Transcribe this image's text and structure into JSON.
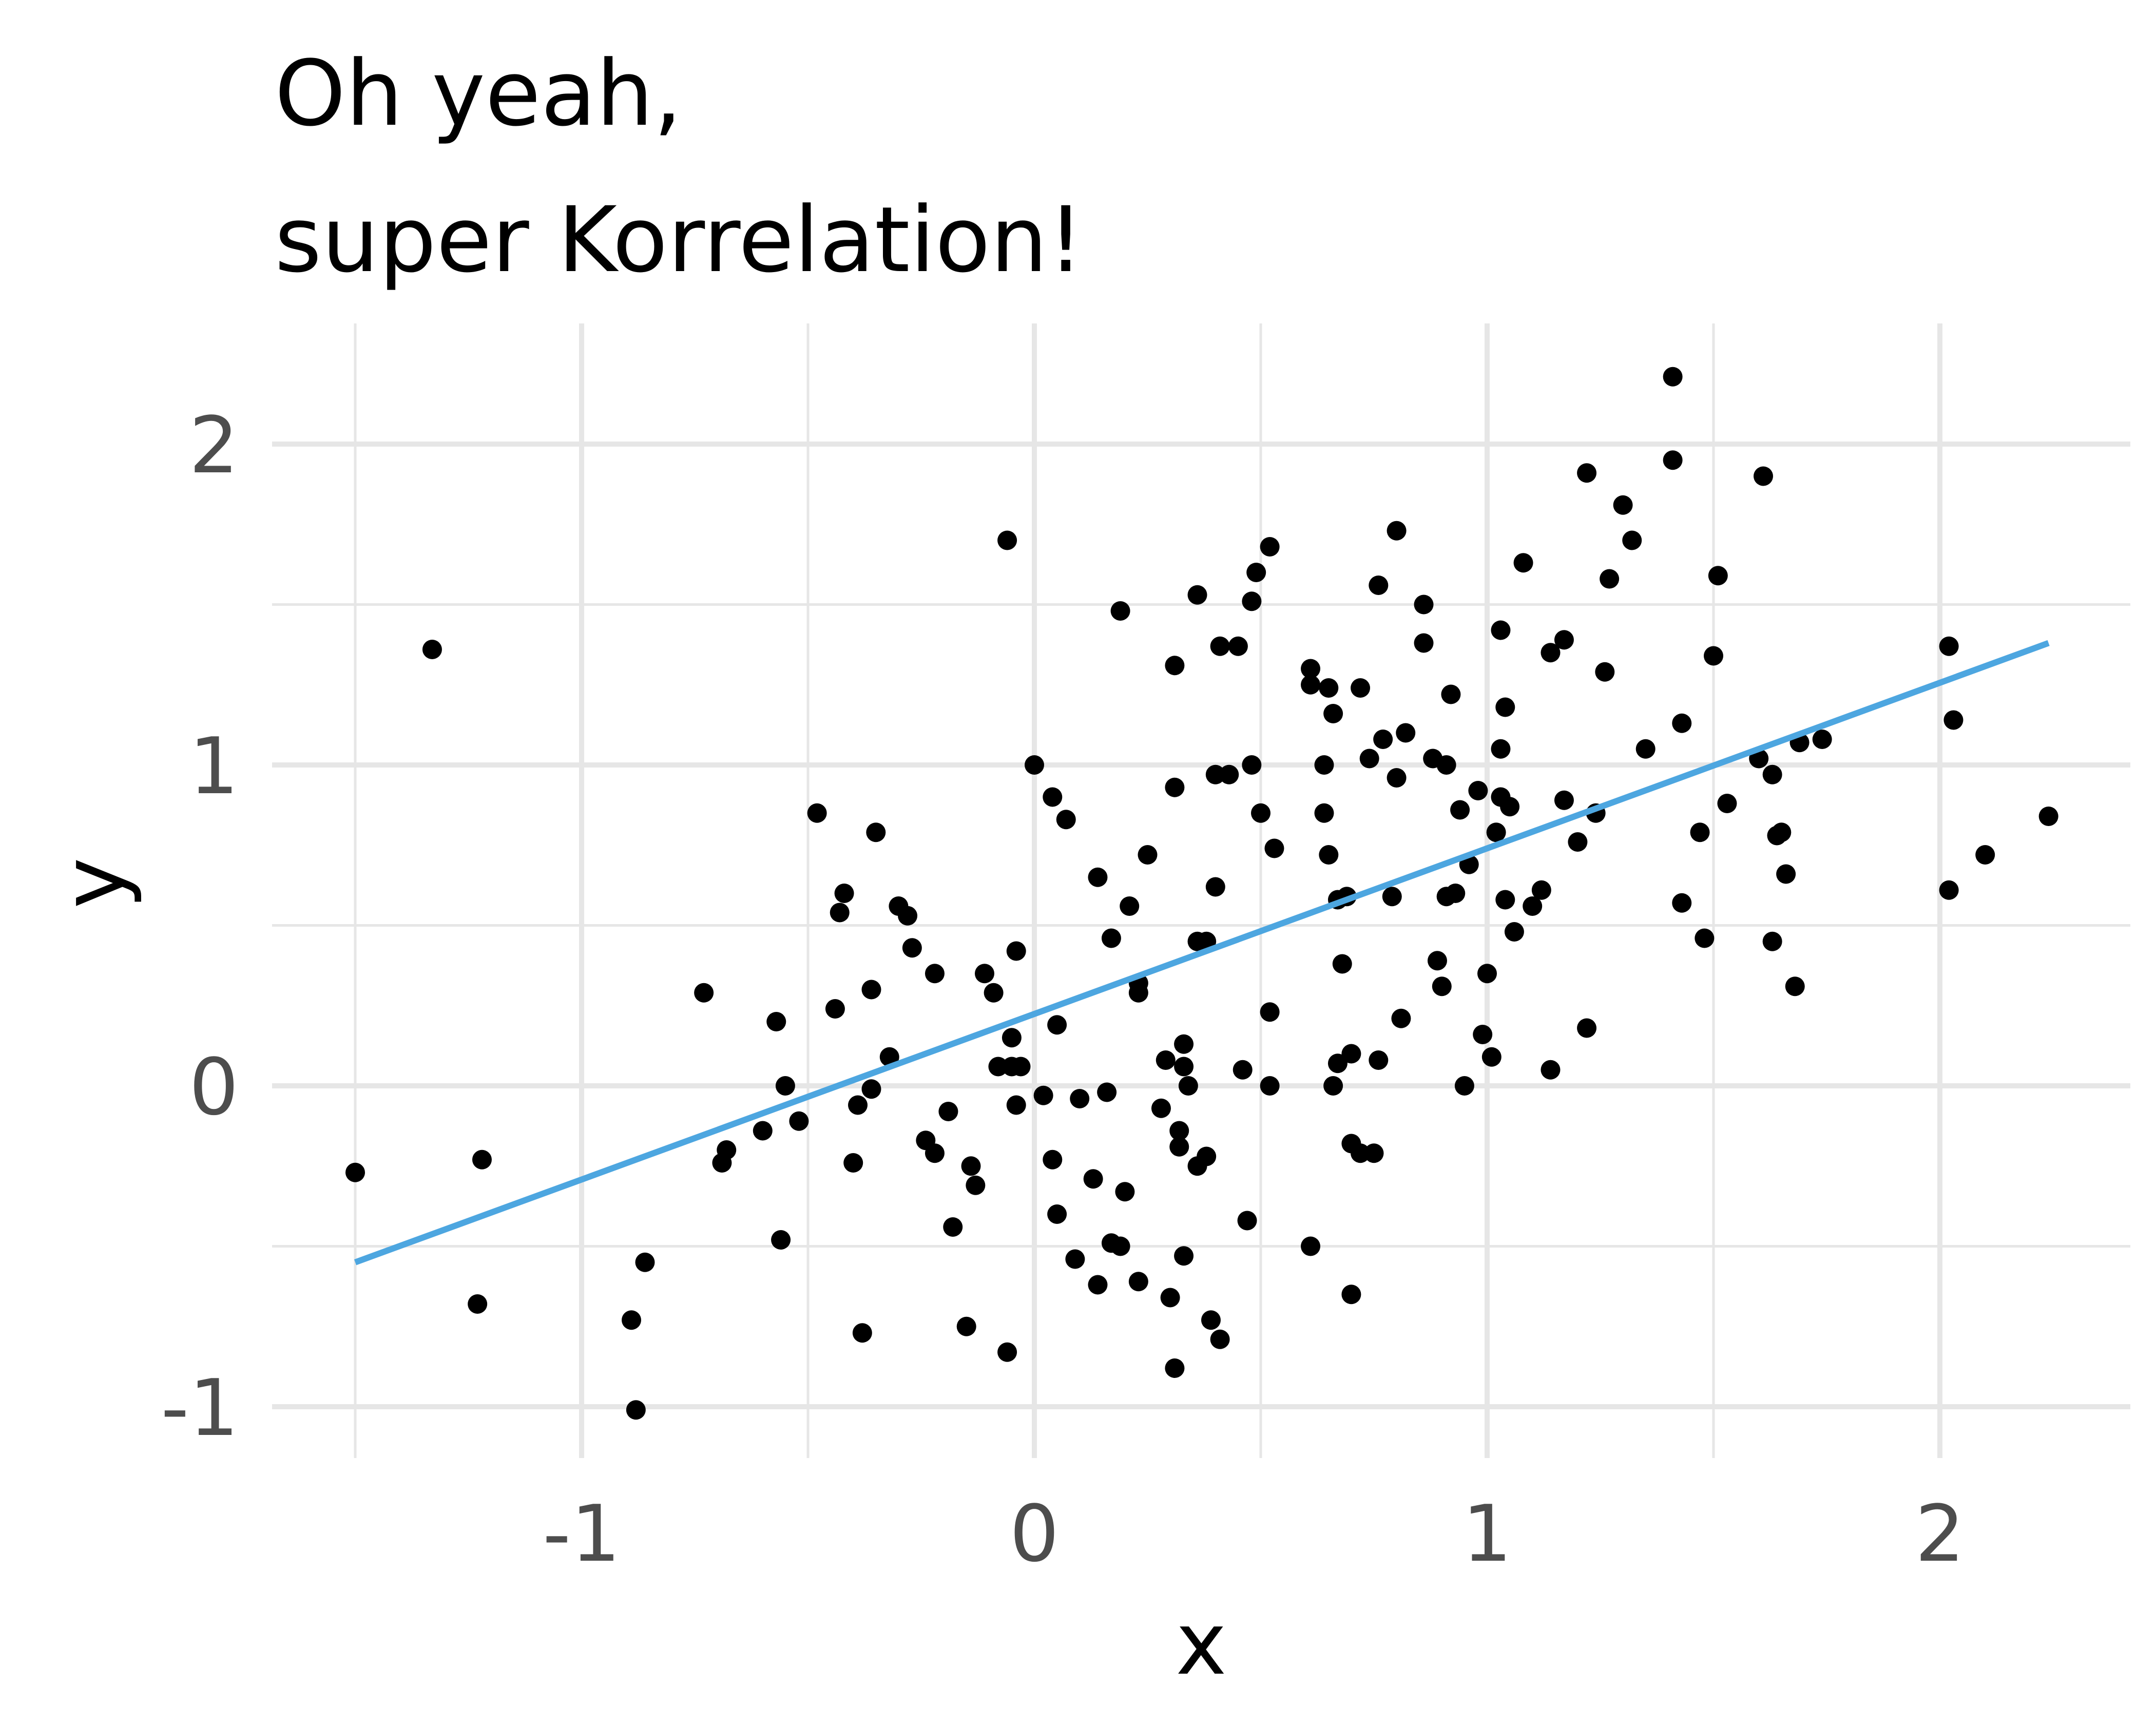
{
  "chart_data": {
    "type": "scatter",
    "title_lines": [
      "Oh yeah,",
      "super Korrelation!"
    ],
    "xlabel": "x",
    "ylabel": "y",
    "xlim": [
      -1.55,
      2.4
    ],
    "ylim": [
      -1.15,
      2.35
    ],
    "x_major_ticks": [
      -1,
      0,
      1,
      2
    ],
    "x_tick_labels": [
      "-1",
      "0",
      "1",
      "2"
    ],
    "x_minor_ticks": [
      -1.5,
      -0.5,
      0.5,
      1.5
    ],
    "y_major_ticks": [
      -1,
      0,
      1,
      2
    ],
    "y_tick_labels": [
      "-1",
      "0",
      "1",
      "2"
    ],
    "y_minor_ticks": [
      -0.5,
      0.5,
      1.5
    ],
    "grid": true,
    "colors": {
      "points": "#000000",
      "fit_line": "#4da6e0",
      "grid": "#e6e6e6"
    },
    "fit_line": {
      "x": [
        -1.5,
        2.24
      ],
      "y": [
        -0.55,
        1.38
      ]
    },
    "points": [
      [
        -1.5,
        -0.27
      ],
      [
        -1.33,
        1.36
      ],
      [
        -1.22,
        -0.23
      ],
      [
        -1.23,
        -0.68
      ],
      [
        -0.89,
        -0.73
      ],
      [
        -0.88,
        -1.01
      ],
      [
        -0.86,
        -0.55
      ],
      [
        -0.73,
        0.29
      ],
      [
        -0.69,
        -0.24
      ],
      [
        -0.68,
        -0.2
      ],
      [
        -0.6,
        -0.14
      ],
      [
        -0.57,
        0.2
      ],
      [
        -0.56,
        -0.48
      ],
      [
        -0.55,
        0.0
      ],
      [
        -0.52,
        -0.11
      ],
      [
        -0.48,
        0.85
      ],
      [
        -0.44,
        0.24
      ],
      [
        -0.43,
        0.54
      ],
      [
        -0.42,
        0.6
      ],
      [
        -0.4,
        -0.24
      ],
      [
        -0.39,
        -0.06
      ],
      [
        -0.38,
        -0.77
      ],
      [
        -0.36,
        -0.01
      ],
      [
        -0.36,
        0.3
      ],
      [
        -0.35,
        0.79
      ],
      [
        -0.32,
        0.09
      ],
      [
        -0.3,
        0.56
      ],
      [
        -0.28,
        0.53
      ],
      [
        -0.27,
        0.43
      ],
      [
        -0.24,
        -0.17
      ],
      [
        -0.22,
        -0.21
      ],
      [
        -0.22,
        0.35
      ],
      [
        -0.19,
        -0.08
      ],
      [
        -0.18,
        -0.44
      ],
      [
        -0.15,
        -0.75
      ],
      [
        -0.14,
        -0.25
      ],
      [
        -0.13,
        -0.31
      ],
      [
        -0.11,
        0.35
      ],
      [
        -0.09,
        0.29
      ],
      [
        -0.08,
        0.06
      ],
      [
        -0.06,
        -0.83
      ],
      [
        -0.06,
        1.7
      ],
      [
        -0.05,
        0.06
      ],
      [
        -0.05,
        0.15
      ],
      [
        -0.04,
        0.42
      ],
      [
        -0.04,
        -0.06
      ],
      [
        -0.03,
        0.06
      ],
      [
        0.0,
        1.0
      ],
      [
        0.02,
        -0.03
      ],
      [
        0.04,
        0.9
      ],
      [
        0.04,
        -0.23
      ],
      [
        0.05,
        -0.4
      ],
      [
        0.05,
        0.19
      ],
      [
        0.07,
        0.83
      ],
      [
        0.09,
        -0.54
      ],
      [
        0.1,
        -0.04
      ],
      [
        0.13,
        -0.29
      ],
      [
        0.14,
        -0.62
      ],
      [
        0.14,
        0.65
      ],
      [
        0.16,
        -0.02
      ],
      [
        0.17,
        0.46
      ],
      [
        0.17,
        -0.49
      ],
      [
        0.19,
        1.48
      ],
      [
        0.19,
        -0.5
      ],
      [
        0.2,
        -0.33
      ],
      [
        0.21,
        0.56
      ],
      [
        0.23,
        0.29
      ],
      [
        0.23,
        0.32
      ],
      [
        0.23,
        -0.61
      ],
      [
        0.25,
        0.72
      ],
      [
        0.28,
        -0.07
      ],
      [
        0.29,
        0.08
      ],
      [
        0.3,
        -0.66
      ],
      [
        0.31,
        1.31
      ],
      [
        0.31,
        0.93
      ],
      [
        0.31,
        -0.88
      ],
      [
        0.32,
        -0.14
      ],
      [
        0.32,
        -0.19
      ],
      [
        0.33,
        0.13
      ],
      [
        0.33,
        0.06
      ],
      [
        0.33,
        -0.53
      ],
      [
        0.34,
        0.0
      ],
      [
        0.36,
        -0.25
      ],
      [
        0.36,
        1.53
      ],
      [
        0.36,
        0.45
      ],
      [
        0.38,
        0.45
      ],
      [
        0.38,
        -0.22
      ],
      [
        0.39,
        -0.73
      ],
      [
        0.4,
        0.97
      ],
      [
        0.4,
        0.62
      ],
      [
        0.41,
        1.37
      ],
      [
        0.41,
        -0.79
      ],
      [
        0.43,
        0.97
      ],
      [
        0.45,
        1.37
      ],
      [
        0.46,
        0.05
      ],
      [
        0.47,
        -0.42
      ],
      [
        0.48,
        1.51
      ],
      [
        0.48,
        1.0
      ],
      [
        0.49,
        1.6
      ],
      [
        0.5,
        0.85
      ],
      [
        0.52,
        1.68
      ],
      [
        0.52,
        0.0
      ],
      [
        0.52,
        0.23
      ],
      [
        0.53,
        0.74
      ],
      [
        0.61,
        1.3
      ],
      [
        0.61,
        1.25
      ],
      [
        0.61,
        -0.5
      ],
      [
        0.64,
        0.85
      ],
      [
        0.64,
        1.0
      ],
      [
        0.65,
        0.72
      ],
      [
        0.65,
        1.24
      ],
      [
        0.66,
        1.16
      ],
      [
        0.66,
        0.0
      ],
      [
        0.67,
        0.07
      ],
      [
        0.67,
        0.58
      ],
      [
        0.68,
        0.38
      ],
      [
        0.69,
        0.59
      ],
      [
        0.7,
        0.1
      ],
      [
        0.7,
        -0.18
      ],
      [
        0.7,
        -0.65
      ],
      [
        0.72,
        1.24
      ],
      [
        0.72,
        -0.21
      ],
      [
        0.74,
        1.02
      ],
      [
        0.75,
        -0.21
      ],
      [
        0.76,
        1.56
      ],
      [
        0.76,
        0.08
      ],
      [
        0.77,
        1.08
      ],
      [
        0.79,
        0.59
      ],
      [
        0.8,
        1.73
      ],
      [
        0.8,
        0.96
      ],
      [
        0.81,
        0.21
      ],
      [
        0.82,
        1.1
      ],
      [
        0.86,
        1.5
      ],
      [
        0.86,
        1.38
      ],
      [
        0.88,
        1.02
      ],
      [
        0.89,
        0.39
      ],
      [
        0.9,
        0.31
      ],
      [
        0.91,
        1.0
      ],
      [
        0.91,
        0.59
      ],
      [
        0.92,
        1.22
      ],
      [
        0.93,
        0.6
      ],
      [
        0.94,
        0.86
      ],
      [
        0.95,
        0.0
      ],
      [
        0.96,
        0.69
      ],
      [
        0.98,
        0.92
      ],
      [
        0.99,
        0.16
      ],
      [
        1.0,
        0.35
      ],
      [
        1.01,
        0.09
      ],
      [
        1.02,
        0.79
      ],
      [
        1.03,
        1.05
      ],
      [
        1.03,
        1.42
      ],
      [
        1.03,
        0.9
      ],
      [
        1.04,
        1.18
      ],
      [
        1.04,
        0.58
      ],
      [
        1.05,
        0.87
      ],
      [
        1.06,
        0.48
      ],
      [
        1.08,
        1.63
      ],
      [
        1.1,
        0.56
      ],
      [
        1.12,
        0.61
      ],
      [
        1.14,
        0.05
      ],
      [
        1.14,
        1.35
      ],
      [
        1.17,
        0.89
      ],
      [
        1.17,
        1.39
      ],
      [
        1.2,
        0.76
      ],
      [
        1.22,
        0.18
      ],
      [
        1.22,
        1.91
      ],
      [
        1.24,
        0.85
      ],
      [
        1.26,
        1.29
      ],
      [
        1.27,
        1.58
      ],
      [
        1.3,
        1.81
      ],
      [
        1.32,
        1.7
      ],
      [
        1.35,
        1.05
      ],
      [
        1.41,
        1.95
      ],
      [
        1.41,
        2.21
      ],
      [
        1.43,
        1.13
      ],
      [
        1.43,
        0.57
      ],
      [
        1.47,
        0.79
      ],
      [
        1.48,
        0.46
      ],
      [
        1.5,
        1.34
      ],
      [
        1.51,
        1.59
      ],
      [
        1.53,
        0.88
      ],
      [
        1.6,
        1.02
      ],
      [
        1.61,
        1.9
      ],
      [
        1.63,
        0.97
      ],
      [
        1.63,
        0.45
      ],
      [
        1.64,
        0.78
      ],
      [
        1.65,
        0.79
      ],
      [
        1.66,
        0.66
      ],
      [
        1.68,
        0.31
      ],
      [
        1.69,
        1.07
      ],
      [
        1.74,
        1.08
      ],
      [
        2.02,
        0.61
      ],
      [
        2.02,
        1.37
      ],
      [
        2.03,
        1.14
      ],
      [
        2.1,
        0.72
      ],
      [
        2.24,
        0.84
      ]
    ]
  }
}
